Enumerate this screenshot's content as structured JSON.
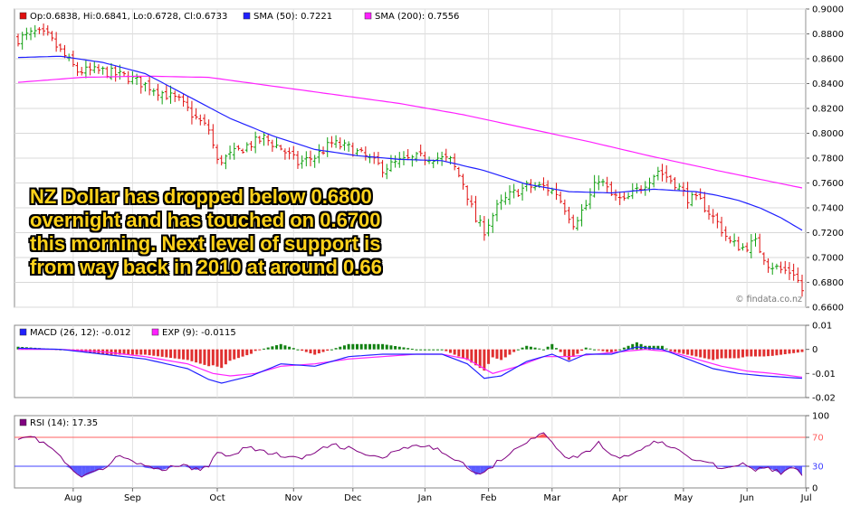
{
  "chart_data": {
    "type": "ohlc",
    "instrument_note": "",
    "price_panel": {
      "legend": [
        {
          "label": "Op:0.6838, Hi:0.6841, Lo:0.6728, Cl:0.6733",
          "color": "#e01010"
        },
        {
          "label": "SMA (50): 0.7221",
          "color": "#2020ff"
        },
        {
          "label": "SMA (200): 0.7556",
          "color": "#ff20ff"
        }
      ],
      "ylim": [
        0.66,
        0.9
      ],
      "yticks": [
        "0.9000",
        "0.8800",
        "0.8600",
        "0.8400",
        "0.8200",
        "0.8000",
        "0.7800",
        "0.7600",
        "0.7400",
        "0.7200",
        "0.7000",
        "0.6800",
        "0.6600"
      ],
      "close_anchors": [
        [
          0,
          0.876
        ],
        [
          4,
          0.881
        ],
        [
          7,
          0.878
        ],
        [
          10,
          0.866
        ],
        [
          14,
          0.85
        ],
        [
          20,
          0.85
        ],
        [
          26,
          0.845
        ],
        [
          32,
          0.836
        ],
        [
          38,
          0.826
        ],
        [
          42,
          0.812
        ],
        [
          45,
          0.803
        ],
        [
          47,
          0.777
        ],
        [
          50,
          0.782
        ],
        [
          54,
          0.79
        ],
        [
          58,
          0.796
        ],
        [
          62,
          0.788
        ],
        [
          66,
          0.776
        ],
        [
          70,
          0.781
        ],
        [
          74,
          0.792
        ],
        [
          78,
          0.788
        ],
        [
          82,
          0.781
        ],
        [
          86,
          0.772
        ],
        [
          90,
          0.777
        ],
        [
          94,
          0.78
        ],
        [
          98,
          0.781
        ],
        [
          102,
          0.778
        ],
        [
          105,
          0.76
        ],
        [
          108,
          0.73
        ],
        [
          110,
          0.722
        ],
        [
          113,
          0.74
        ],
        [
          116,
          0.75
        ],
        [
          120,
          0.757
        ],
        [
          124,
          0.757
        ],
        [
          127,
          0.752
        ],
        [
          129,
          0.74
        ],
        [
          131,
          0.728
        ],
        [
          134,
          0.742
        ],
        [
          137,
          0.764
        ],
        [
          140,
          0.75
        ],
        [
          143,
          0.745
        ],
        [
          147,
          0.757
        ],
        [
          151,
          0.77
        ],
        [
          155,
          0.76
        ],
        [
          158,
          0.748
        ],
        [
          161,
          0.745
        ],
        [
          165,
          0.728
        ],
        [
          168,
          0.712
        ],
        [
          171,
          0.708
        ],
        [
          174,
          0.712
        ],
        [
          177,
          0.695
        ],
        [
          180,
          0.69
        ],
        [
          183,
          0.688
        ],
        [
          185,
          0.674
        ]
      ],
      "sma50_anchors": [
        [
          0,
          0.861
        ],
        [
          10,
          0.862
        ],
        [
          20,
          0.857
        ],
        [
          30,
          0.848
        ],
        [
          40,
          0.83
        ],
        [
          50,
          0.812
        ],
        [
          60,
          0.798
        ],
        [
          70,
          0.787
        ],
        [
          80,
          0.782
        ],
        [
          90,
          0.779
        ],
        [
          100,
          0.778
        ],
        [
          110,
          0.77
        ],
        [
          120,
          0.759
        ],
        [
          130,
          0.753
        ],
        [
          140,
          0.752
        ],
        [
          150,
          0.755
        ],
        [
          160,
          0.753
        ],
        [
          165,
          0.75
        ],
        [
          170,
          0.746
        ],
        [
          175,
          0.74
        ],
        [
          180,
          0.732
        ],
        [
          185,
          0.722
        ]
      ],
      "sma200_anchors": [
        [
          0,
          0.841
        ],
        [
          15,
          0.845
        ],
        [
          30,
          0.846
        ],
        [
          45,
          0.845
        ],
        [
          60,
          0.838
        ],
        [
          75,
          0.831
        ],
        [
          90,
          0.824
        ],
        [
          105,
          0.815
        ],
        [
          120,
          0.804
        ],
        [
          135,
          0.793
        ],
        [
          150,
          0.781
        ],
        [
          165,
          0.77
        ],
        [
          175,
          0.763
        ],
        [
          185,
          0.756
        ]
      ],
      "last_close": 0.6733,
      "annotation": [
        "NZ Dollar has dropped below 0.6800",
        "overnight and has touched on 0.6700",
        "this morning. Next level of support is",
        "from way back in 2010 at around 0.66"
      ],
      "watermark": "© findata.co.nz"
    },
    "macd_panel": {
      "legend": [
        {
          "label": "MACD (26, 12): -0.012",
          "color": "#2020ff"
        },
        {
          "label": "EXP (9): -0.0115",
          "color": "#ff20ff"
        }
      ],
      "ylim": [
        -0.02,
        0.01
      ],
      "yticks": [
        "0.01",
        "0",
        "-0.01",
        "-0.02"
      ],
      "macd_anchors": [
        [
          0,
          0.0005
        ],
        [
          10,
          0.0
        ],
        [
          20,
          -0.002
        ],
        [
          30,
          -0.004
        ],
        [
          40,
          -0.008
        ],
        [
          45,
          -0.0125
        ],
        [
          48,
          -0.014
        ],
        [
          55,
          -0.011
        ],
        [
          62,
          -0.006
        ],
        [
          70,
          -0.007
        ],
        [
          78,
          -0.003
        ],
        [
          86,
          -0.002
        ],
        [
          94,
          -0.002
        ],
        [
          100,
          -0.002
        ],
        [
          106,
          -0.006
        ],
        [
          110,
          -0.012
        ],
        [
          114,
          -0.011
        ],
        [
          120,
          -0.005
        ],
        [
          126,
          -0.002
        ],
        [
          130,
          -0.005
        ],
        [
          134,
          -0.002
        ],
        [
          140,
          -0.002
        ],
        [
          146,
          0.001
        ],
        [
          152,
          0.0
        ],
        [
          158,
          -0.004
        ],
        [
          164,
          -0.008
        ],
        [
          170,
          -0.01
        ],
        [
          176,
          -0.011
        ],
        [
          185,
          -0.012
        ]
      ],
      "exp_anchors": [
        [
          0,
          0.0
        ],
        [
          10,
          0.0
        ],
        [
          20,
          -0.001
        ],
        [
          30,
          -0.003
        ],
        [
          40,
          -0.006
        ],
        [
          46,
          -0.01
        ],
        [
          50,
          -0.011
        ],
        [
          56,
          -0.01
        ],
        [
          62,
          -0.007
        ],
        [
          70,
          -0.006
        ],
        [
          78,
          -0.004
        ],
        [
          86,
          -0.003
        ],
        [
          94,
          -0.002
        ],
        [
          100,
          -0.002
        ],
        [
          106,
          -0.004
        ],
        [
          112,
          -0.01
        ],
        [
          118,
          -0.007
        ],
        [
          124,
          -0.003
        ],
        [
          130,
          -0.003
        ],
        [
          136,
          -0.002
        ],
        [
          142,
          -0.001
        ],
        [
          148,
          0.0
        ],
        [
          154,
          -0.001
        ],
        [
          160,
          -0.004
        ],
        [
          166,
          -0.007
        ],
        [
          172,
          -0.009
        ],
        [
          178,
          -0.01
        ],
        [
          185,
          -0.0115
        ]
      ]
    },
    "rsi_panel": {
      "legend": [
        {
          "label": "RSI (14): 17.35",
          "color": "#800080"
        }
      ],
      "ylim": [
        0,
        100
      ],
      "yticks": [
        "100",
        "70",
        "30",
        "0"
      ],
      "overbought": 70,
      "oversold": 30,
      "rsi_anchors": [
        [
          0,
          70
        ],
        [
          3,
          72
        ],
        [
          6,
          62
        ],
        [
          9,
          50
        ],
        [
          12,
          28
        ],
        [
          15,
          15
        ],
        [
          18,
          22
        ],
        [
          21,
          30
        ],
        [
          24,
          45
        ],
        [
          27,
          40
        ],
        [
          30,
          28
        ],
        [
          34,
          25
        ],
        [
          38,
          32
        ],
        [
          42,
          25
        ],
        [
          45,
          30
        ],
        [
          47,
          50
        ],
        [
          50,
          45
        ],
        [
          54,
          57
        ],
        [
          58,
          50
        ],
        [
          62,
          45
        ],
        [
          66,
          40
        ],
        [
          70,
          48
        ],
        [
          74,
          60
        ],
        [
          78,
          55
        ],
        [
          82,
          45
        ],
        [
          86,
          42
        ],
        [
          90,
          52
        ],
        [
          94,
          58
        ],
        [
          98,
          55
        ],
        [
          102,
          45
        ],
        [
          106,
          30
        ],
        [
          108,
          18
        ],
        [
          110,
          22
        ],
        [
          114,
          40
        ],
        [
          118,
          58
        ],
        [
          122,
          70
        ],
        [
          124,
          75
        ],
        [
          126,
          62
        ],
        [
          130,
          40
        ],
        [
          134,
          48
        ],
        [
          137,
          62
        ],
        [
          140,
          45
        ],
        [
          143,
          42
        ],
        [
          147,
          55
        ],
        [
          151,
          65
        ],
        [
          155,
          55
        ],
        [
          158,
          42
        ],
        [
          161,
          40
        ],
        [
          165,
          30
        ],
        [
          168,
          28
        ],
        [
          171,
          35
        ],
        [
          174,
          25
        ],
        [
          177,
          28
        ],
        [
          180,
          20
        ],
        [
          183,
          30
        ],
        [
          185,
          17
        ]
      ]
    },
    "x_labels": [
      {
        "label": "Aug",
        "index": 13
      },
      {
        "label": "Sep",
        "index": 27
      },
      {
        "label": "Oct",
        "index": 47
      },
      {
        "label": "Nov",
        "index": 65
      },
      {
        "label": "Dec",
        "index": 79
      },
      {
        "label": "Jan",
        "index": 96
      },
      {
        "label": "Feb",
        "index": 111
      },
      {
        "label": "Mar",
        "index": 126
      },
      {
        "label": "Apr",
        "index": 142
      },
      {
        "label": "May",
        "index": 157
      },
      {
        "label": "Jun",
        "index": 172
      },
      {
        "label": "Jul",
        "index": 186
      }
    ],
    "n_bars": 186,
    "colors": {
      "up": "#10a010",
      "down": "#e01010",
      "macd": "#2020ff",
      "exp": "#ff20ff",
      "rsi": "#800080",
      "hist_pos": "#108010",
      "hist_neg": "#e03030",
      "rsi_fill": "#4040ff",
      "ob_line": "#ff6060",
      "os_line": "#4040ff"
    }
  }
}
